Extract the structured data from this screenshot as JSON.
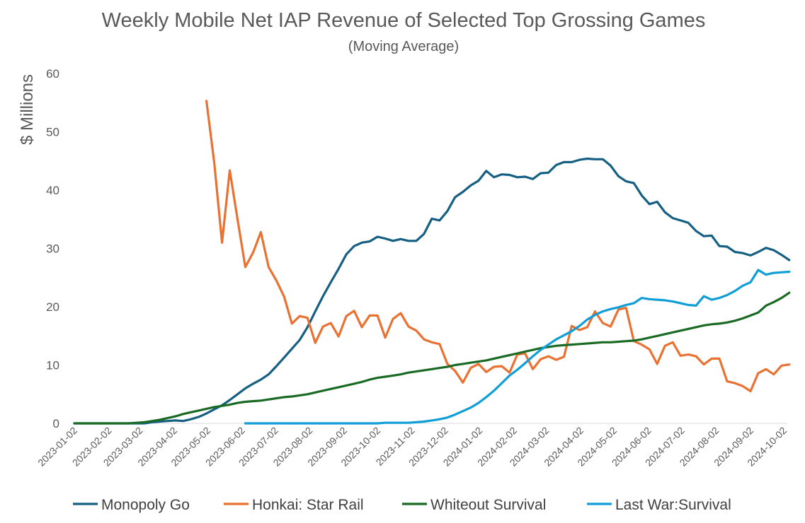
{
  "chart_data": {
    "type": "line",
    "title": "Weekly Mobile Net IAP Revenue of Selected Top Grossing Games",
    "subtitle": "(Moving Average)",
    "xlabel": "",
    "ylabel": "$ Millions",
    "ylim": [
      0,
      60
    ],
    "yticks": [
      "0",
      "10",
      "20",
      "30",
      "40",
      "50",
      "60"
    ],
    "xlim": [
      "2023-01-02",
      "2024-10-02"
    ],
    "xticks": [
      "2023-01-02",
      "2023-02-02",
      "2023-03-02",
      "2023-04-02",
      "2023-05-02",
      "2023-06-02",
      "2023-07-02",
      "2023-08-02",
      "2023-09-02",
      "2023-10-02",
      "2023-11-02",
      "2023-12-02",
      "2024-01-02",
      "2024-02-02",
      "2024-03-02",
      "2024-04-02",
      "2024-05-02",
      "2024-06-02",
      "2024-07-02",
      "2024-08-02",
      "2024-09-02",
      "2024-10-02"
    ],
    "grid": false,
    "legend": "bottom",
    "x": [
      "2023-01-02",
      "2023-01-09",
      "2023-01-16",
      "2023-01-23",
      "2023-01-30",
      "2023-02-06",
      "2023-02-13",
      "2023-02-20",
      "2023-02-27",
      "2023-03-06",
      "2023-03-13",
      "2023-03-20",
      "2023-03-27",
      "2023-04-03",
      "2023-04-10",
      "2023-04-17",
      "2023-04-24",
      "2023-05-01",
      "2023-05-08",
      "2023-05-15",
      "2023-05-22",
      "2023-05-29",
      "2023-06-05",
      "2023-06-12",
      "2023-06-19",
      "2023-06-26",
      "2023-07-03",
      "2023-07-10",
      "2023-07-17",
      "2023-07-24",
      "2023-07-31",
      "2023-08-07",
      "2023-08-14",
      "2023-08-21",
      "2023-08-28",
      "2023-09-04",
      "2023-09-11",
      "2023-09-18",
      "2023-09-25",
      "2023-10-02",
      "2023-10-09",
      "2023-10-16",
      "2023-10-23",
      "2023-10-30",
      "2023-11-06",
      "2023-11-13",
      "2023-11-20",
      "2023-11-27",
      "2023-12-04",
      "2023-12-11",
      "2023-12-18",
      "2023-12-25",
      "2024-01-01",
      "2024-01-08",
      "2024-01-15",
      "2024-01-22",
      "2024-01-29",
      "2024-02-05",
      "2024-02-12",
      "2024-02-19",
      "2024-02-26",
      "2024-03-04",
      "2024-03-11",
      "2024-03-18",
      "2024-03-25",
      "2024-04-01",
      "2024-04-08",
      "2024-04-15",
      "2024-04-22",
      "2024-04-29",
      "2024-05-06",
      "2024-05-13",
      "2024-05-20",
      "2024-05-27",
      "2024-06-03",
      "2024-06-10",
      "2024-06-17",
      "2024-06-24",
      "2024-07-01",
      "2024-07-08",
      "2024-07-15",
      "2024-07-22",
      "2024-07-29",
      "2024-08-05",
      "2024-08-12",
      "2024-08-19",
      "2024-08-26",
      "2024-09-02",
      "2024-09-09",
      "2024-09-16",
      "2024-09-23",
      "2024-09-30",
      "2024-10-07"
    ],
    "series": [
      {
        "name": "Monopoly Go",
        "color": "#156082",
        "values": [
          0,
          0,
          0,
          0,
          0,
          0,
          0,
          0,
          0,
          0,
          0.2,
          0.3,
          0.4,
          0.5,
          0.4,
          0.7,
          1.1,
          1.7,
          2.4,
          3.1,
          4.0,
          5.0,
          6.0,
          6.8,
          7.5,
          8.4,
          9.8,
          11.3,
          12.8,
          14.3,
          16.5,
          19.2,
          21.8,
          24.2,
          26.5,
          29.0,
          30.4,
          31.0,
          31.2,
          32.0,
          31.7,
          31.3,
          31.6,
          31.3,
          31.3,
          32.5,
          35.1,
          34.8,
          36.4,
          38.8,
          39.7,
          40.8,
          41.6,
          43.3,
          42.2,
          42.7,
          42.6,
          42.2,
          42.3,
          41.9,
          42.9,
          43.0,
          44.3,
          44.8,
          44.8,
          45.2,
          45.4,
          45.3,
          45.3,
          44.2,
          42.4,
          41.5,
          41.2,
          39.1,
          37.6,
          38.0,
          36.2,
          35.2,
          34.8,
          34.4,
          33.0,
          32.1,
          32.2,
          30.4,
          30.3,
          29.4,
          29.2,
          28.8,
          29.4,
          30.1,
          29.7,
          28.9,
          28.0
        ]
      },
      {
        "name": "Honkai: Star Rail",
        "color": "#e97132",
        "values": [
          null,
          null,
          null,
          null,
          null,
          null,
          null,
          null,
          null,
          null,
          null,
          null,
          null,
          null,
          null,
          null,
          null,
          55.3,
          44.7,
          31.0,
          43.4,
          35.0,
          26.8,
          29.3,
          32.8,
          26.8,
          24.5,
          21.7,
          17.1,
          18.4,
          18.1,
          13.8,
          16.6,
          17.2,
          14.9,
          18.4,
          19.3,
          16.5,
          18.5,
          18.5,
          14.7,
          17.9,
          18.9,
          16.6,
          15.9,
          14.4,
          13.9,
          13.6,
          10.2,
          9.0,
          7.0,
          9.5,
          10.2,
          8.8,
          9.7,
          9.8,
          8.7,
          11.8,
          12.0,
          9.3,
          11.0,
          11.5,
          10.9,
          11.4,
          16.7,
          16.0,
          16.5,
          19.2,
          17.2,
          16.6,
          19.5,
          19.8,
          14.1,
          13.5,
          12.7,
          10.2,
          13.3,
          13.9,
          11.6,
          11.8,
          11.5,
          10.1,
          11.1,
          11.1,
          7.2,
          6.9,
          6.4,
          5.5,
          8.6,
          9.3,
          8.4,
          9.9,
          10.1
        ]
      },
      {
        "name": "Whiteout Survival",
        "color": "#196b24",
        "values": [
          0,
          0,
          0,
          0,
          0,
          0,
          0,
          0,
          0.1,
          0.2,
          0.4,
          0.6,
          0.9,
          1.2,
          1.6,
          1.9,
          2.2,
          2.5,
          2.8,
          3.0,
          3.2,
          3.5,
          3.7,
          3.8,
          3.9,
          4.1,
          4.3,
          4.5,
          4.6,
          4.8,
          5.0,
          5.3,
          5.6,
          5.9,
          6.2,
          6.5,
          6.8,
          7.1,
          7.5,
          7.8,
          8.0,
          8.2,
          8.4,
          8.7,
          8.9,
          9.1,
          9.3,
          9.5,
          9.7,
          10.0,
          10.2,
          10.4,
          10.6,
          10.8,
          11.1,
          11.4,
          11.7,
          12.0,
          12.3,
          12.6,
          12.9,
          13.1,
          13.3,
          13.4,
          13.5,
          13.6,
          13.7,
          13.8,
          13.9,
          13.9,
          14.0,
          14.1,
          14.2,
          14.4,
          14.7,
          15.0,
          15.3,
          15.6,
          15.9,
          16.2,
          16.5,
          16.8,
          17.0,
          17.1,
          17.3,
          17.6,
          18.0,
          18.5,
          19.0,
          20.2,
          20.8,
          21.5,
          22.4
        ]
      },
      {
        "name": "Last War:Survival",
        "color": "#0f9ed5",
        "values": [
          null,
          null,
          null,
          null,
          null,
          null,
          null,
          null,
          null,
          null,
          null,
          null,
          null,
          null,
          null,
          null,
          null,
          null,
          null,
          null,
          null,
          null,
          0,
          0,
          0,
          0,
          0,
          0,
          0,
          0,
          0,
          0,
          0,
          0,
          0,
          0,
          0,
          0,
          0,
          0,
          0.1,
          0.1,
          0.1,
          0.1,
          0.2,
          0.3,
          0.5,
          0.7,
          1.0,
          1.5,
          2.1,
          2.7,
          3.5,
          4.5,
          5.6,
          6.9,
          8.2,
          9.2,
          10.3,
          11.5,
          12.6,
          13.5,
          14.4,
          15.1,
          15.8,
          16.7,
          17.8,
          18.6,
          19.2,
          19.6,
          19.9,
          20.3,
          20.6,
          21.5,
          21.3,
          21.2,
          21.1,
          20.9,
          20.6,
          20.3,
          20.2,
          21.8,
          21.2,
          21.5,
          22.0,
          22.7,
          23.6,
          24.2,
          26.3,
          25.5,
          25.8,
          25.9,
          26.0
        ]
      }
    ]
  }
}
